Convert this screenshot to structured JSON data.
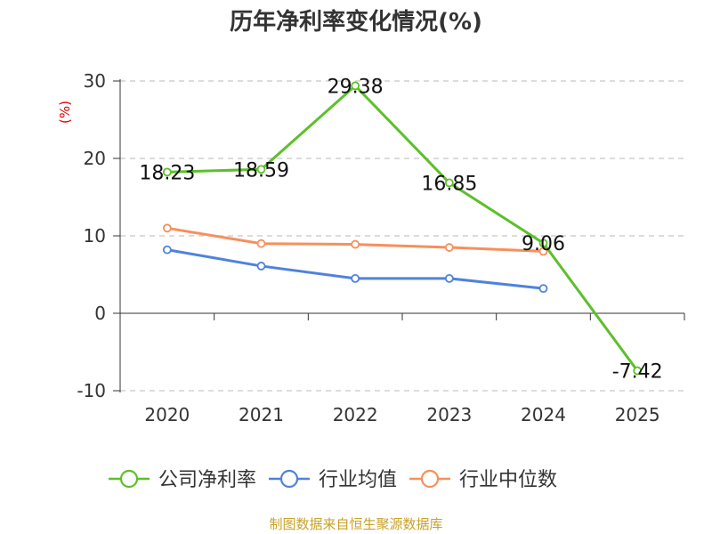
{
  "title": "历年净利率变化情况(%)",
  "source": "制图数据来自恒生聚源数据库",
  "colors": {
    "company": "#5cc02a",
    "industry_avg": "#4f82dc",
    "industry_median": "#f78f5c",
    "source_text": "#c9a227",
    "unit_label": "#e00000"
  },
  "chart_data": {
    "type": "line",
    "title": "历年净利率变化情况(%)",
    "ylabel": "(%)",
    "xlabel": "",
    "categories": [
      "2020",
      "2021",
      "2022",
      "2023",
      "2024",
      "2025"
    ],
    "yticks": [
      "30",
      "20",
      "10",
      "0",
      "-10"
    ],
    "ylim": [
      -10,
      30
    ],
    "grid": true,
    "legend_position": "bottom",
    "series": [
      {
        "name": "公司净利率",
        "color": "#5cc02a",
        "values": [
          18.23,
          18.59,
          29.38,
          16.85,
          9.06,
          -7.42
        ],
        "labels": [
          "18.23",
          "18.59",
          "29.38",
          "16.85",
          "9.06",
          "-7.42"
        ]
      },
      {
        "name": "行业均值",
        "color": "#4f82dc",
        "values": [
          8.2,
          6.1,
          4.5,
          4.5,
          3.2,
          null
        ]
      },
      {
        "name": "行业中位数",
        "color": "#f78f5c",
        "values": [
          11.0,
          9.0,
          8.9,
          8.5,
          8.0,
          null
        ]
      }
    ]
  }
}
